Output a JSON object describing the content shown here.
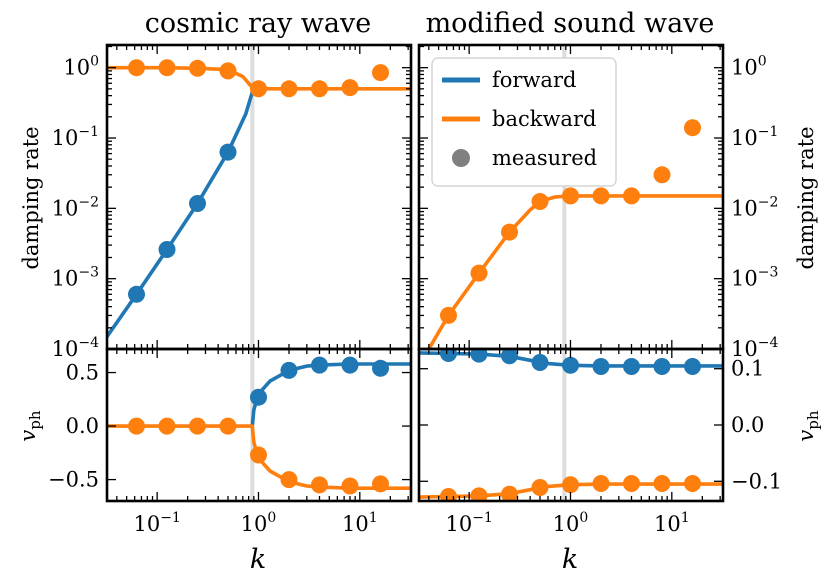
{
  "figure": {
    "colors": {
      "forward": "#1f77b4",
      "backward": "#ff7f0e",
      "measured": "#808080",
      "vline": "#dddddd",
      "frame": "#000000"
    },
    "legend": {
      "placement": "top-right of right panel",
      "forward": "forward",
      "backward": "backward",
      "measured": "measured"
    }
  },
  "chart_data": [
    {
      "name": "cosmic-ray-damping",
      "type": "line",
      "title": "cosmic ray wave",
      "xlabel": "k",
      "ylabel": "damping rate",
      "xscale": "log",
      "yscale": "log",
      "xlim": [
        0.032,
        32
      ],
      "ylim": [
        0.0001,
        2.1
      ],
      "xticks": [
        "10^{-1}",
        "10^{0}",
        "10^{1}"
      ],
      "yticks": [
        "10^{0}",
        "10^{-1}",
        "10^{-2}",
        "10^{-3}",
        "10^{-4}"
      ],
      "vline_k": 0.87,
      "series": [
        {
          "name": "forward",
          "kind": "line",
          "x": [
            0.032,
            0.0625,
            0.125,
            0.25,
            0.5,
            0.75,
            0.87
          ],
          "y": [
            0.00015,
            0.0006,
            0.0026,
            0.0117,
            0.063,
            0.22,
            0.45
          ]
        },
        {
          "name": "backward",
          "kind": "line",
          "x": [
            0.032,
            0.0625,
            0.125,
            0.25,
            0.4,
            0.55,
            0.7,
            0.8,
            0.87,
            0.95,
            1.3,
            2,
            4,
            8,
            32
          ],
          "y": [
            1.0,
            1.0,
            1.0,
            0.98,
            0.95,
            0.88,
            0.75,
            0.6,
            0.52,
            0.5,
            0.5,
            0.5,
            0.5,
            0.5,
            0.5
          ]
        },
        {
          "name": "forward",
          "kind": "measured",
          "x": [
            0.0625,
            0.125,
            0.25,
            0.5
          ],
          "y": [
            0.0006,
            0.0026,
            0.0117,
            0.063
          ]
        },
        {
          "name": "backward",
          "kind": "measured",
          "x": [
            0.0625,
            0.125,
            0.25,
            0.5,
            1,
            2,
            4,
            8,
            16
          ],
          "y": [
            1.0,
            1.0,
            0.98,
            0.9,
            0.5,
            0.5,
            0.5,
            0.52,
            0.85
          ]
        }
      ]
    },
    {
      "name": "sound-wave-damping",
      "type": "line",
      "title": "modified sound wave",
      "xlabel": "k",
      "ylabel": "damping rate",
      "xscale": "log",
      "yscale": "log",
      "xlim": [
        0.032,
        32
      ],
      "ylim": [
        0.0001,
        2.1
      ],
      "xticks": [
        "10^{-1}",
        "10^{0}",
        "10^{1}"
      ],
      "yticks": [
        "10^{0}",
        "10^{-1}",
        "10^{-2}",
        "10^{-3}",
        "10^{-4}"
      ],
      "vline_k": 0.87,
      "series": [
        {
          "name": "backward",
          "kind": "line",
          "x": [
            0.04,
            0.0625,
            0.125,
            0.25,
            0.4,
            0.5,
            0.7,
            1,
            2,
            4,
            8,
            16,
            32
          ],
          "y": [
            0.0001,
            0.0003,
            0.0012,
            0.0046,
            0.0095,
            0.0125,
            0.0145,
            0.015,
            0.015,
            0.015,
            0.015,
            0.015,
            0.015
          ]
        },
        {
          "name": "backward",
          "kind": "measured",
          "x": [
            0.0625,
            0.125,
            0.25,
            0.5,
            1,
            2,
            4,
            8,
            16
          ],
          "y": [
            0.0003,
            0.0012,
            0.0046,
            0.0125,
            0.015,
            0.015,
            0.015,
            0.03,
            0.14
          ]
        }
      ]
    },
    {
      "name": "cosmic-ray-vph",
      "type": "line",
      "xlabel": "k",
      "ylabel": "v_ph",
      "xscale": "log",
      "yscale": "linear",
      "xlim": [
        0.032,
        32
      ],
      "ylim": [
        -0.7,
        0.72
      ],
      "xticks": [
        "10^{-1}",
        "10^{0}",
        "10^{1}"
      ],
      "yticks": [
        0.5,
        0.0,
        -0.5
      ],
      "ytick_labels": [
        "0.5",
        "0.0",
        "−0.5"
      ],
      "vline_k": 0.87,
      "series": [
        {
          "name": "forward",
          "kind": "line",
          "x": [
            0.87,
            0.9,
            1,
            1.3,
            2,
            3,
            4,
            8,
            32
          ],
          "y": [
            0.0,
            0.15,
            0.3,
            0.42,
            0.52,
            0.56,
            0.57,
            0.58,
            0.58
          ]
        },
        {
          "name": "backward",
          "kind": "line",
          "x": [
            0.032,
            0.0625,
            0.125,
            0.25,
            0.5,
            0.8,
            0.87,
            0.9,
            1,
            1.3,
            2,
            3,
            4,
            8,
            32
          ],
          "y": [
            0.0,
            0.0,
            0.0,
            0.0,
            0.0,
            0.0,
            0.0,
            -0.15,
            -0.3,
            -0.42,
            -0.52,
            -0.56,
            -0.57,
            -0.58,
            -0.58
          ]
        },
        {
          "name": "forward",
          "kind": "measured",
          "x": [
            1,
            2,
            4,
            8,
            16
          ],
          "y": [
            0.27,
            0.52,
            0.57,
            0.57,
            0.54
          ]
        },
        {
          "name": "backward",
          "kind": "measured",
          "x": [
            0.0625,
            0.125,
            0.25,
            0.5,
            1,
            2,
            4,
            8,
            16
          ],
          "y": [
            0.0,
            0.0,
            0.0,
            0.0,
            -0.27,
            -0.5,
            -0.55,
            -0.56,
            -0.54
          ]
        }
      ]
    },
    {
      "name": "sound-wave-vph",
      "type": "line",
      "xlabel": "k",
      "ylabel": "v_ph",
      "xscale": "log",
      "yscale": "linear",
      "xlim": [
        0.032,
        32
      ],
      "ylim": [
        -0.135,
        0.135
      ],
      "xticks": [
        "10^{-1}",
        "10^{0}",
        "10^{1}"
      ],
      "yticks": [
        0.1,
        0.0,
        -0.1
      ],
      "ytick_labels": [
        "0.1",
        "0.0",
        "−0.1"
      ],
      "vline_k": 0.87,
      "series": [
        {
          "name": "forward",
          "kind": "line",
          "x": [
            0.032,
            0.0625,
            0.125,
            0.25,
            0.4,
            0.6,
            1,
            2,
            4,
            8,
            16,
            32
          ],
          "y": [
            0.128,
            0.127,
            0.126,
            0.122,
            0.115,
            0.109,
            0.106,
            0.105,
            0.105,
            0.105,
            0.105,
            0.105
          ]
        },
        {
          "name": "backward",
          "kind": "line",
          "x": [
            0.032,
            0.0625,
            0.125,
            0.25,
            0.4,
            0.6,
            1,
            2,
            4,
            8,
            16,
            32
          ],
          "y": [
            -0.128,
            -0.127,
            -0.126,
            -0.122,
            -0.115,
            -0.109,
            -0.106,
            -0.105,
            -0.105,
            -0.105,
            -0.105,
            -0.105
          ]
        },
        {
          "name": "forward",
          "kind": "measured",
          "x": [
            0.0625,
            0.125,
            0.25,
            0.5,
            1,
            2,
            4,
            8,
            16
          ],
          "y": [
            0.127,
            0.126,
            0.123,
            0.111,
            0.106,
            0.104,
            0.104,
            0.104,
            0.104
          ]
        },
        {
          "name": "backward",
          "kind": "measured",
          "x": [
            0.0625,
            0.125,
            0.25,
            0.5,
            1,
            2,
            4,
            8,
            16
          ],
          "y": [
            -0.127,
            -0.126,
            -0.123,
            -0.111,
            -0.106,
            -0.104,
            -0.104,
            -0.104,
            -0.104
          ]
        }
      ]
    }
  ]
}
